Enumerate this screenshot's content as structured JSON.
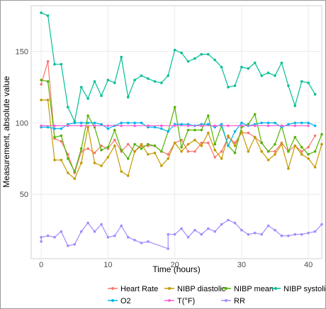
{
  "chart_data": {
    "type": "line",
    "xlabel": "Time (hours)",
    "ylabel": "Measurement, absolute value",
    "xlim": [
      -1.5,
      42
    ],
    "ylim": [
      5,
      182
    ],
    "x_ticks": [
      0,
      10,
      20,
      30,
      40
    ],
    "y_ticks": [
      50,
      100,
      150
    ],
    "grid": true,
    "legend_position": "bottom",
    "series": [
      {
        "name": "Heart Rate",
        "color": "#f8766d",
        "points": [
          [
            0,
            127
          ],
          [
            1,
            143
          ],
          [
            2,
            89
          ],
          [
            3,
            87
          ],
          [
            4,
            78
          ],
          [
            5,
            65
          ],
          [
            6,
            80
          ],
          [
            7,
            82
          ],
          [
            8,
            79
          ],
          [
            9,
            84
          ],
          [
            10,
            82
          ],
          [
            11,
            88
          ],
          [
            12,
            80
          ],
          [
            13,
            85
          ],
          [
            14,
            80
          ],
          [
            15,
            84
          ],
          [
            16,
            84
          ],
          [
            17,
            84
          ],
          [
            18,
            80
          ],
          [
            19,
            78
          ],
          [
            20,
            86
          ],
          [
            21,
            88
          ],
          [
            22,
            80
          ],
          [
            23,
            80
          ],
          [
            24,
            86
          ],
          [
            25,
            86
          ],
          [
            26,
            76
          ],
          [
            27,
            80
          ],
          [
            28,
            90
          ],
          [
            29,
            86
          ],
          [
            30,
            93
          ],
          [
            31,
            93
          ],
          [
            32,
            90
          ],
          [
            33,
            86
          ],
          [
            34,
            80
          ],
          [
            35,
            80
          ],
          [
            36,
            86
          ],
          [
            37,
            80
          ],
          [
            38,
            84
          ],
          [
            39,
            80
          ],
          [
            40,
            83
          ],
          [
            41,
            91
          ]
        ]
      },
      {
        "name": "NIBP diastolic",
        "color": "#c49a00",
        "points": [
          [
            0,
            116
          ],
          [
            1,
            116
          ],
          [
            2,
            74
          ],
          [
            3,
            74
          ],
          [
            4,
            65
          ],
          [
            5,
            61
          ],
          [
            6,
            72
          ],
          [
            7,
            97
          ],
          [
            8,
            72
          ],
          [
            9,
            70
          ],
          [
            10,
            76
          ],
          [
            11,
            84
          ],
          [
            12,
            66
          ],
          [
            13,
            63
          ],
          [
            14,
            80
          ],
          [
            15,
            85
          ],
          [
            16,
            78
          ],
          [
            17,
            79
          ],
          [
            18,
            70
          ],
          [
            19,
            75
          ],
          [
            20,
            86
          ],
          [
            21,
            80
          ],
          [
            22,
            85
          ],
          [
            23,
            88
          ],
          [
            24,
            84
          ],
          [
            25,
            93
          ],
          [
            26,
            81
          ],
          [
            27,
            75
          ],
          [
            28,
            91
          ],
          [
            29,
            84
          ],
          [
            30,
            94
          ],
          [
            31,
            80
          ],
          [
            32,
            90
          ],
          [
            33,
            80
          ],
          [
            34,
            74
          ],
          [
            35,
            78
          ],
          [
            36,
            85
          ],
          [
            37,
            68
          ],
          [
            38,
            84
          ],
          [
            39,
            78
          ],
          [
            40,
            75
          ],
          [
            41,
            69
          ],
          [
            42,
            85
          ]
        ]
      },
      {
        "name": "NIBP mean",
        "color": "#53b400",
        "points": [
          [
            0,
            130
          ],
          [
            1,
            129
          ],
          [
            2,
            90
          ],
          [
            3,
            91
          ],
          [
            4,
            75
          ],
          [
            5,
            66
          ],
          [
            6,
            82
          ],
          [
            7,
            105
          ],
          [
            8,
            97
          ],
          [
            9,
            81
          ],
          [
            10,
            83
          ],
          [
            11,
            95
          ],
          [
            12,
            81
          ],
          [
            13,
            75
          ],
          [
            14,
            85
          ],
          [
            15,
            82
          ],
          [
            16,
            85
          ],
          [
            17,
            84
          ],
          [
            18,
            80
          ],
          [
            19,
            94
          ],
          [
            20,
            111
          ],
          [
            21,
            83
          ],
          [
            22,
            95
          ],
          [
            23,
            95
          ],
          [
            24,
            95
          ],
          [
            25,
            105
          ],
          [
            26,
            85
          ],
          [
            27,
            98
          ],
          [
            28,
            84
          ],
          [
            29,
            79
          ],
          [
            30,
            97
          ],
          [
            31,
            99
          ],
          [
            32,
            106
          ],
          [
            33,
            86
          ],
          [
            34,
            80
          ],
          [
            35,
            85
          ],
          [
            36,
            98
          ],
          [
            37,
            80
          ],
          [
            38,
            90
          ],
          [
            39,
            83
          ],
          [
            40,
            78
          ],
          [
            41,
            80
          ],
          [
            42,
            92
          ]
        ]
      },
      {
        "name": "NIBP systolic",
        "color": "#00c094",
        "points": [
          [
            0,
            177
          ],
          [
            1,
            175
          ],
          [
            2,
            141
          ],
          [
            3,
            141
          ],
          [
            4,
            111
          ],
          [
            5,
            101
          ],
          [
            6,
            125
          ],
          [
            7,
            117
          ],
          [
            8,
            129
          ],
          [
            9,
            119
          ],
          [
            10,
            130
          ],
          [
            11,
            128
          ],
          [
            12,
            146
          ],
          [
            13,
            118
          ],
          [
            14,
            130
          ],
          [
            15,
            133
          ],
          [
            16,
            131
          ],
          [
            17,
            129
          ],
          [
            18,
            128
          ],
          [
            19,
            133
          ],
          [
            20,
            151
          ],
          [
            21,
            149
          ],
          [
            22,
            143
          ],
          [
            23,
            145
          ],
          [
            24,
            148
          ],
          [
            25,
            148
          ],
          [
            26,
            144
          ],
          [
            27,
            139
          ],
          [
            28,
            125
          ],
          [
            29,
            126
          ],
          [
            30,
            139
          ],
          [
            31,
            138
          ],
          [
            32,
            142
          ],
          [
            33,
            133
          ],
          [
            34,
            135
          ],
          [
            35,
            133
          ],
          [
            36,
            142
          ],
          [
            37,
            126
          ],
          [
            38,
            112
          ],
          [
            39,
            129
          ],
          [
            40,
            128
          ],
          [
            41,
            120
          ]
        ]
      },
      {
        "name": "O2",
        "color": "#00b6eb",
        "points": [
          [
            0,
            97
          ],
          [
            1,
            97
          ],
          [
            2,
            96
          ],
          [
            3,
            96
          ],
          [
            4,
            99
          ],
          [
            5,
            100
          ],
          [
            6,
            100
          ],
          [
            7,
            100
          ],
          [
            8,
            100
          ],
          [
            9,
            99
          ],
          [
            10,
            96
          ],
          [
            11,
            98
          ],
          [
            12,
            100
          ],
          [
            13,
            100
          ],
          [
            14,
            100
          ],
          [
            15,
            100
          ],
          [
            16,
            97
          ],
          [
            17,
            97
          ],
          [
            18,
            96
          ],
          [
            19,
            94
          ],
          [
            20,
            99
          ],
          [
            21,
            99
          ],
          [
            22,
            99
          ],
          [
            23,
            98
          ],
          [
            24,
            99
          ],
          [
            25,
            99
          ],
          [
            26,
            97
          ],
          [
            27,
            99
          ],
          [
            28,
            84
          ],
          [
            29,
            94
          ],
          [
            30,
            100
          ],
          [
            31,
            98
          ],
          [
            32,
            99
          ],
          [
            33,
            100
          ],
          [
            34,
            100
          ],
          [
            35,
            100
          ],
          [
            36,
            97
          ],
          [
            37,
            99
          ],
          [
            38,
            100
          ],
          [
            39,
            100
          ],
          [
            40,
            100
          ],
          [
            41,
            98
          ]
        ]
      },
      {
        "name": "T(°F)",
        "color": "#fb61d7",
        "points": [
          [
            0,
            98
          ],
          [
            2,
            98
          ],
          [
            4,
            98
          ],
          [
            6,
            98
          ],
          [
            8,
            98
          ],
          [
            10,
            98
          ],
          [
            12,
            98
          ],
          [
            14,
            98
          ],
          [
            16,
            98
          ],
          [
            18,
            98
          ],
          [
            20,
            98
          ],
          [
            22,
            98
          ],
          [
            24,
            98
          ],
          [
            26,
            98
          ],
          [
            28,
            98
          ],
          [
            30,
            98
          ],
          [
            32,
            98
          ],
          [
            34,
            98
          ],
          [
            36,
            98
          ],
          [
            38,
            98
          ],
          [
            40,
            98
          ]
        ]
      },
      {
        "name": "RR",
        "color": "#a58aff",
        "points": [
          [
            0,
            17
          ],
          [
            0,
            20
          ],
          [
            1,
            21
          ],
          [
            2,
            20
          ],
          [
            3,
            24
          ],
          [
            4,
            14
          ],
          [
            5,
            15
          ],
          [
            6,
            24
          ],
          [
            7,
            30
          ],
          [
            8,
            24
          ],
          [
            9,
            29
          ],
          [
            10,
            20
          ],
          [
            11,
            21
          ],
          [
            12,
            28
          ],
          [
            13,
            20
          ],
          [
            14,
            18
          ],
          [
            15,
            16
          ],
          [
            16,
            17
          ],
          [
            19,
            12
          ],
          [
            19,
            22
          ],
          [
            20,
            22
          ],
          [
            21,
            26
          ],
          [
            22,
            20
          ],
          [
            23,
            25
          ],
          [
            24,
            22
          ],
          [
            25,
            26
          ],
          [
            26,
            24
          ],
          [
            27,
            29
          ],
          [
            28,
            32
          ],
          [
            29,
            30
          ],
          [
            30,
            25
          ],
          [
            31,
            22
          ],
          [
            32,
            23
          ],
          [
            33,
            22
          ],
          [
            34,
            28
          ],
          [
            35,
            25
          ],
          [
            36,
            21
          ],
          [
            37,
            21
          ],
          [
            38,
            22
          ],
          [
            39,
            22
          ],
          [
            40,
            23
          ],
          [
            41,
            24
          ],
          [
            42,
            29
          ]
        ]
      }
    ]
  }
}
